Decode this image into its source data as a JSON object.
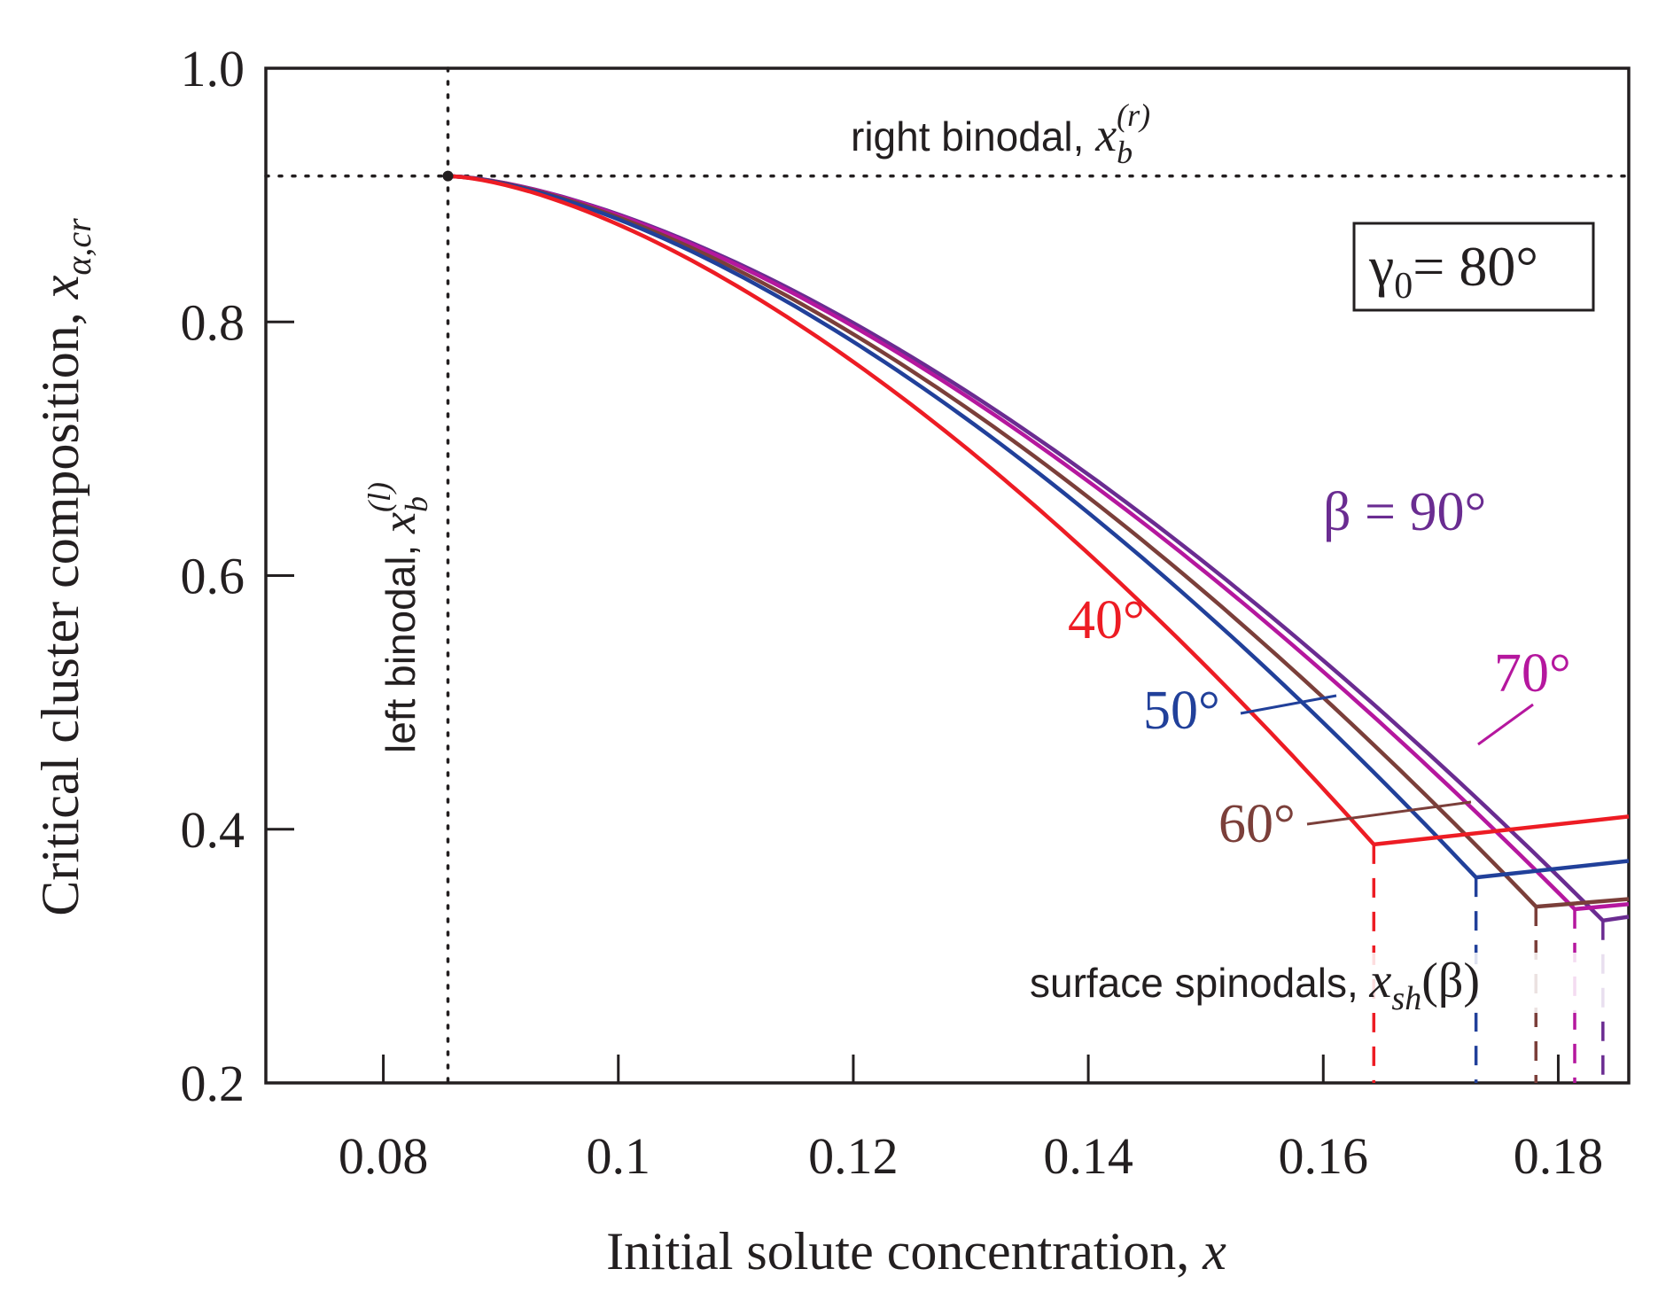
{
  "chart_data": {
    "type": "line",
    "title": "",
    "xlabel": "Initial solute concentration, x",
    "ylabel": "Critical cluster composition, x_{α,cr}",
    "xlim": [
      0.07,
      0.186
    ],
    "ylim": [
      0.2,
      1.0
    ],
    "x_ticks": [
      0.08,
      0.1,
      0.12,
      0.14,
      0.16,
      0.18
    ],
    "x_tick_labels": [
      "0.08",
      "0.1",
      "0.12",
      "0.14",
      "0.16",
      "0.18"
    ],
    "y_ticks": [
      0.2,
      0.4,
      0.6,
      0.8,
      1.0
    ],
    "y_tick_labels": [
      "0.2",
      "0.4",
      "0.6",
      "0.8",
      "1.0"
    ],
    "grid": false,
    "parameter_box": "γ0 = 80°",
    "reference_lines": {
      "right_binodal": {
        "y": 0.915,
        "label": "right binodal, x_b^(r)"
      },
      "left_binodal": {
        "x": 0.0855,
        "label": "left binodal, x_b^(l)"
      }
    },
    "spinodal_label": "surface spinodals, x_sh(β)",
    "series": [
      {
        "name": "40°",
        "beta": 40,
        "color": "#ed1c24",
        "x_spinodal": 0.1643,
        "y_spinodal": 0.388,
        "end": [
          0.186,
          0.41
        ]
      },
      {
        "name": "50°",
        "beta": 50,
        "color": "#21409a",
        "x_spinodal": 0.173,
        "y_spinodal": 0.362,
        "end": [
          0.186,
          0.375
        ]
      },
      {
        "name": "60°",
        "beta": 60,
        "color": "#7b3f3a",
        "x_spinodal": 0.1781,
        "y_spinodal": 0.339,
        "end": [
          0.186,
          0.345
        ]
      },
      {
        "name": "70°",
        "beta": 70,
        "color": "#b5179e",
        "x_spinodal": 0.1814,
        "y_spinodal": 0.337,
        "end": [
          0.186,
          0.341
        ]
      },
      {
        "name": "β = 90°",
        "beta": 90,
        "color": "#6a2c91",
        "x_spinodal": 0.1838,
        "y_spinodal": 0.328,
        "end": [
          0.186,
          0.331
        ]
      }
    ],
    "common_start": [
      0.0855,
      0.915
    ]
  }
}
